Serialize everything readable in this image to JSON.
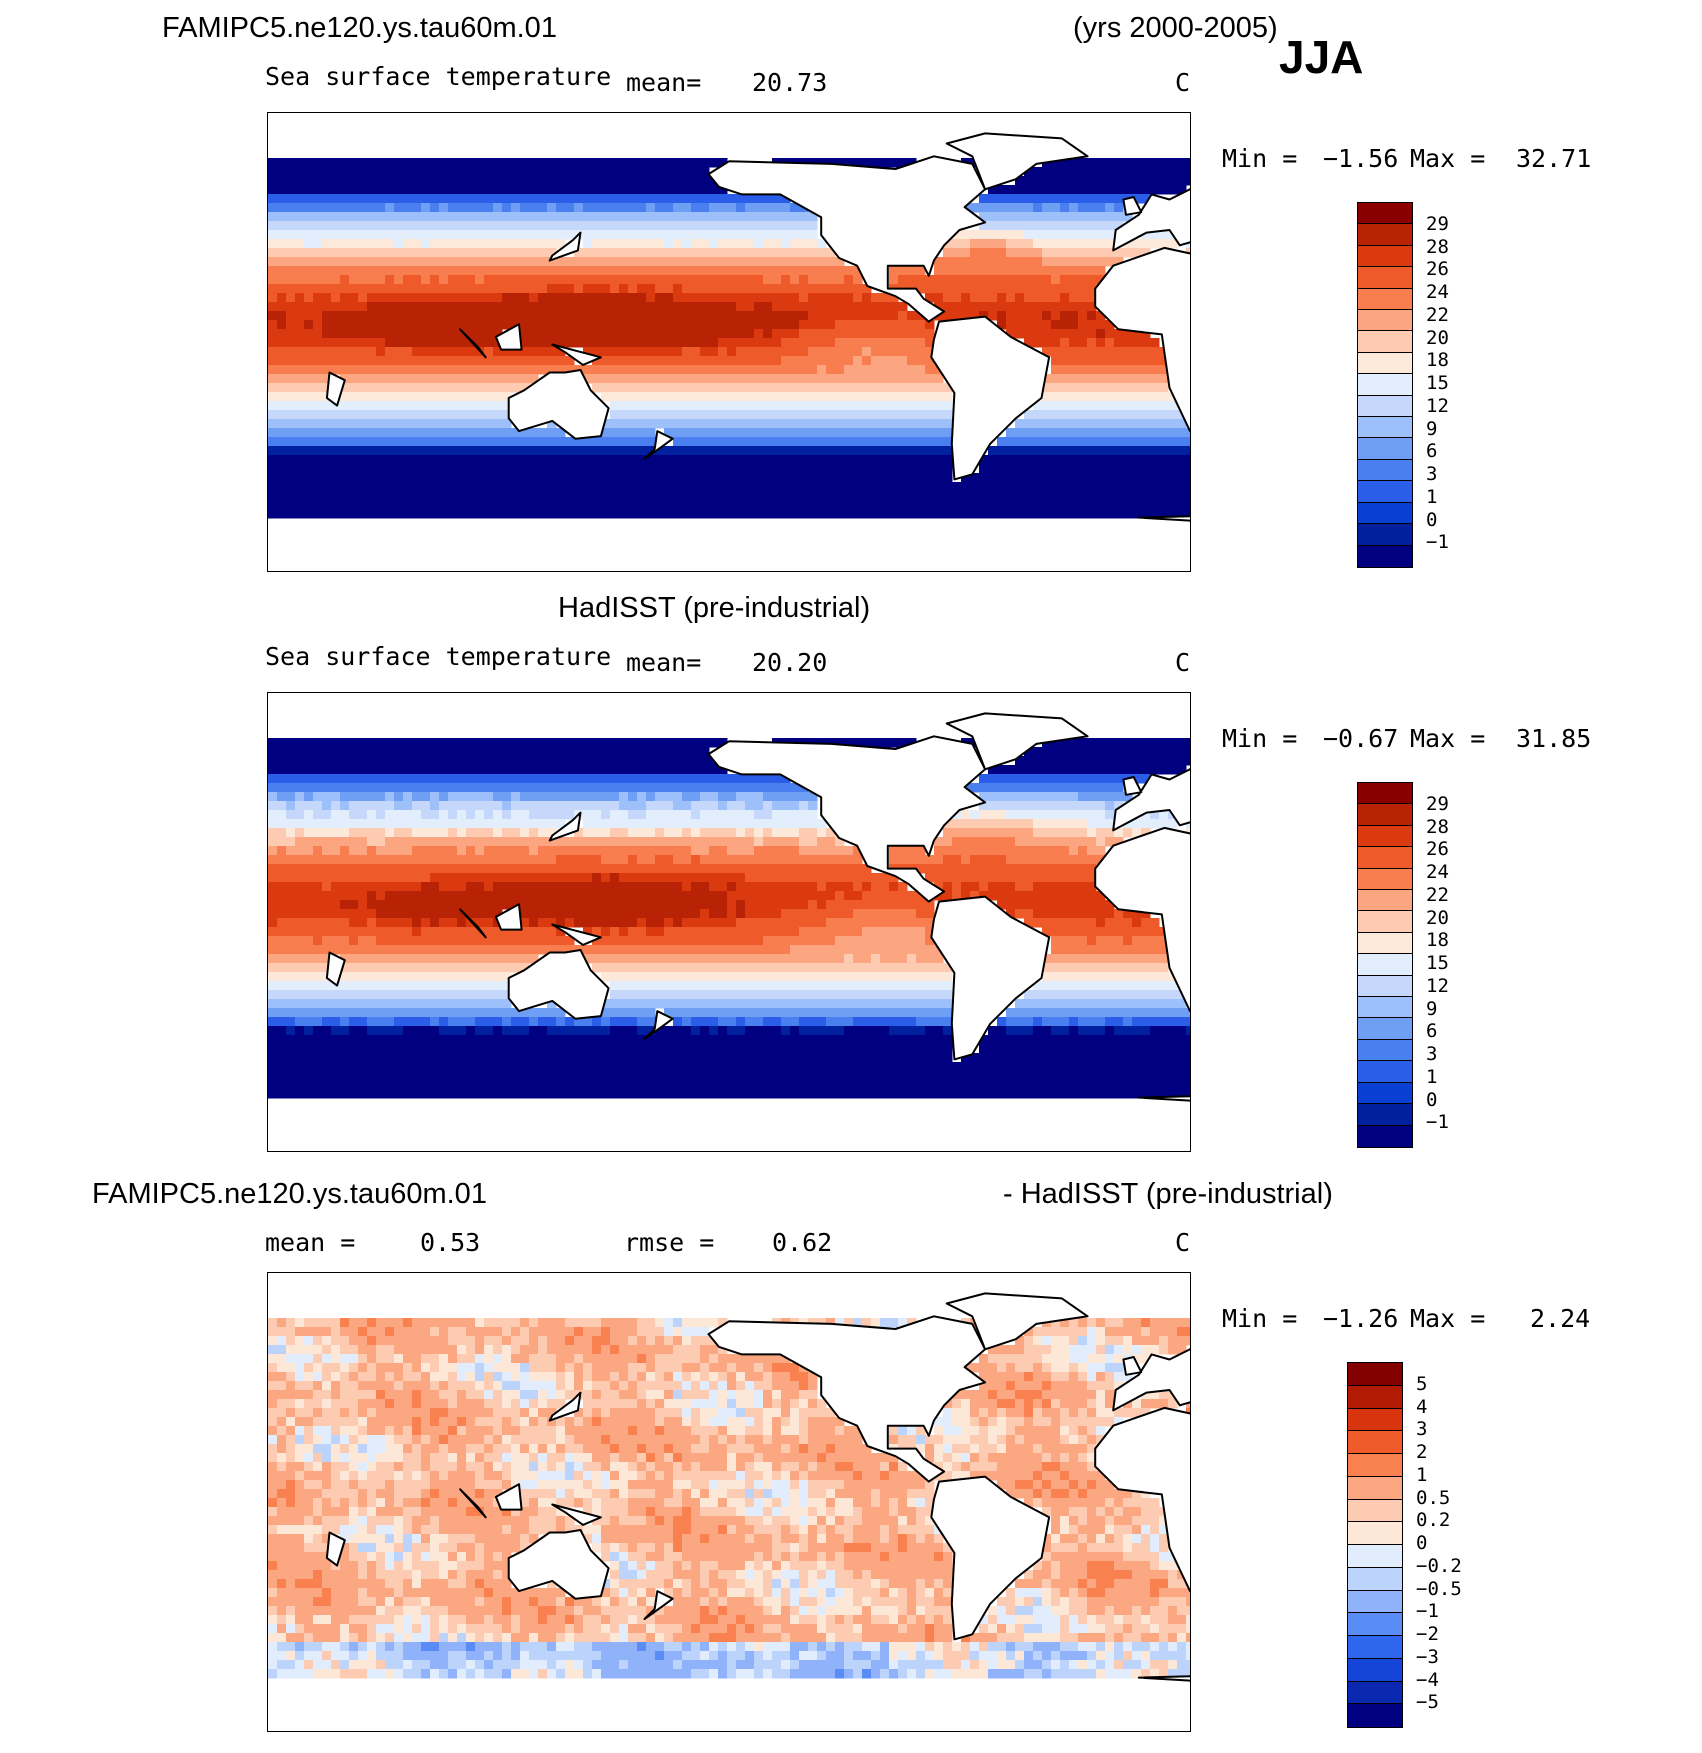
{
  "season": "JJA",
  "years": "(yrs 2000-2005)",
  "colors": {
    "sst_palette": [
      "#000080",
      "#0020a0",
      "#0a3fd4",
      "#2b5ee8",
      "#4a7fef",
      "#6f9ef5",
      "#9ec0fa",
      "#c5d8fb",
      "#e2eefc",
      "#fde9d9",
      "#fccbb2",
      "#fba680",
      "#f87d4f",
      "#ee5a2a",
      "#db3a10",
      "#b82306",
      "#8a0000"
    ],
    "diff_palette": [
      "#000080",
      "#0a28b0",
      "#1545d8",
      "#2f66ee",
      "#5a8cf5",
      "#8fb2fa",
      "#bcd3fc",
      "#e1ecfd",
      "#fde8d8",
      "#fccbb1",
      "#fba882",
      "#f8814f",
      "#ef5b2b",
      "#d8350e",
      "#b21a04",
      "#820000"
    ],
    "land": "#ffffff",
    "coast": "#000000"
  },
  "panels": [
    {
      "title": "FAMIPC5.ne120.ys.tau60m.01",
      "variable": "Sea surface temperature",
      "mean_label": "mean=",
      "mean_value": "20.73",
      "units": "C",
      "min_label": "Min =",
      "min_value": "−1.56",
      "max_label": "Max =",
      "max_value": "32.71",
      "colorbar_levels": [
        "29",
        "28",
        "26",
        "24",
        "22",
        "20",
        "18",
        "15",
        "12",
        "9",
        "6",
        "3",
        "1",
        "0",
        "−1"
      ]
    },
    {
      "title": "HadISST (pre-industrial)",
      "variable": "Sea surface temperature",
      "mean_label": "mean=",
      "mean_value": "20.20",
      "units": "C",
      "min_label": "Min =",
      "min_value": "−0.67",
      "max_label": "Max =",
      "max_value": "31.85",
      "colorbar_levels": [
        "29",
        "28",
        "26",
        "24",
        "22",
        "20",
        "18",
        "15",
        "12",
        "9",
        "6",
        "3",
        "1",
        "0",
        "−1"
      ]
    },
    {
      "title_left": "FAMIPC5.ne120.ys.tau60m.01",
      "title_right": "- HadISST (pre-industrial)",
      "mean_label": "mean =",
      "mean_value": "0.53",
      "rmse_label": "rmse =",
      "rmse_value": "0.62",
      "units": "C",
      "min_label": "Min =",
      "min_value": "−1.26",
      "max_label": "Max =",
      "max_value": "2.24",
      "colorbar_levels": [
        "5",
        "4",
        "3",
        "2",
        "1",
        "0.5",
        "0.2",
        "0",
        "−0.2",
        "−0.5",
        "−1",
        "−2",
        "−3",
        "−4",
        "−5"
      ]
    }
  ]
}
